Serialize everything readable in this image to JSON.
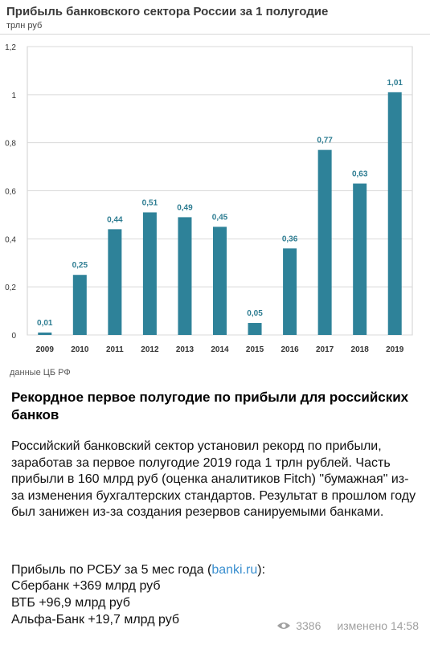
{
  "chart_data": {
    "type": "bar",
    "title": "Прибыль банковского сектора России  за 1 полугодие",
    "subtitle": "трлн руб",
    "categories": [
      "2009",
      "2010",
      "2011",
      "2012",
      "2013",
      "2014",
      "2015",
      "2016",
      "2017",
      "2018",
      "2019"
    ],
    "values": [
      0.01,
      0.25,
      0.44,
      0.51,
      0.49,
      0.45,
      0.05,
      0.36,
      0.77,
      0.63,
      1.01
    ],
    "value_labels": [
      "0,01",
      "0,25",
      "0,44",
      "0,51",
      "0,49",
      "0,45",
      "0,05",
      "0,36",
      "0,77",
      "0,63",
      "1,01"
    ],
    "ylim": [
      0,
      1.2
    ],
    "yticks": [
      0,
      0.2,
      0.4,
      0.6,
      0.8,
      1,
      1.2
    ],
    "ytick_labels": [
      "0",
      "0,2",
      "0,4",
      "0,6",
      "0,8",
      "1",
      "1,2"
    ],
    "grid": true,
    "bar_color": "#2e8299",
    "source": "данные ЦБ РФ"
  },
  "post": {
    "title": "Рекордное первое полугодие по прибыли для российских банков",
    "body": "Российский банковский сектор установил рекорд по прибыли, заработав за первое полугодие 2019 года 1 трлн рублей. Часть прибыли в 160 млрд руб (оценка аналитиков Fitch) \"бумажная\" из-за изменения бухгалтерских стандартов. Результат в прошлом году был занижен из-за создания резервов санируемыми банками.",
    "stats_intro_prefix": "Прибыль по РСБУ за 5 мес года (",
    "stats_link": "banki.ru",
    "stats_intro_suffix": "):",
    "stats": [
      "Сбербанк +369 млрд руб",
      "ВТБ +96,9 млрд руб",
      "Альфа-Банк +19,7 млрд руб"
    ],
    "views": "3386",
    "edited": "изменено 14:58",
    "link_color": "#3a8fcf"
  }
}
